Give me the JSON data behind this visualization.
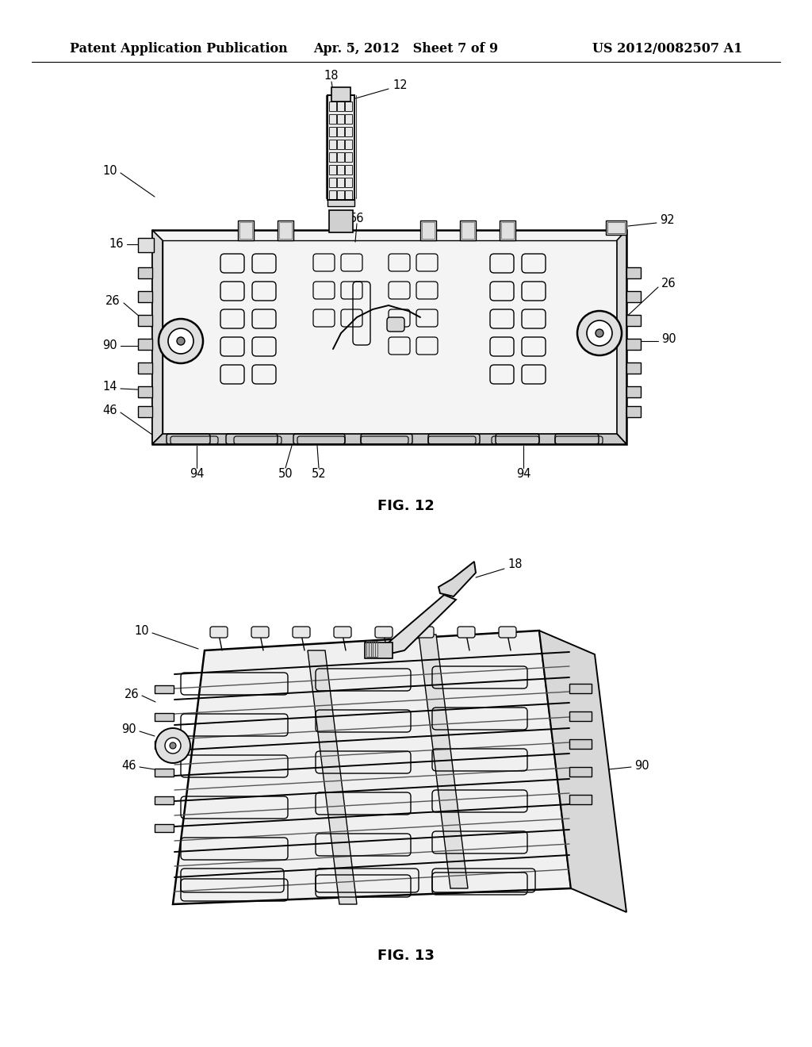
{
  "background_color": "#ffffff",
  "header": {
    "left_text": "Patent Application Publication",
    "center_text": "Apr. 5, 2012   Sheet 7 of 9",
    "right_text": "US 2012/0082507 A1",
    "font_size": 11.5
  },
  "fig12_label": "FIG. 12",
  "fig13_label": "FIG. 13",
  "label_fontsize": 13
}
